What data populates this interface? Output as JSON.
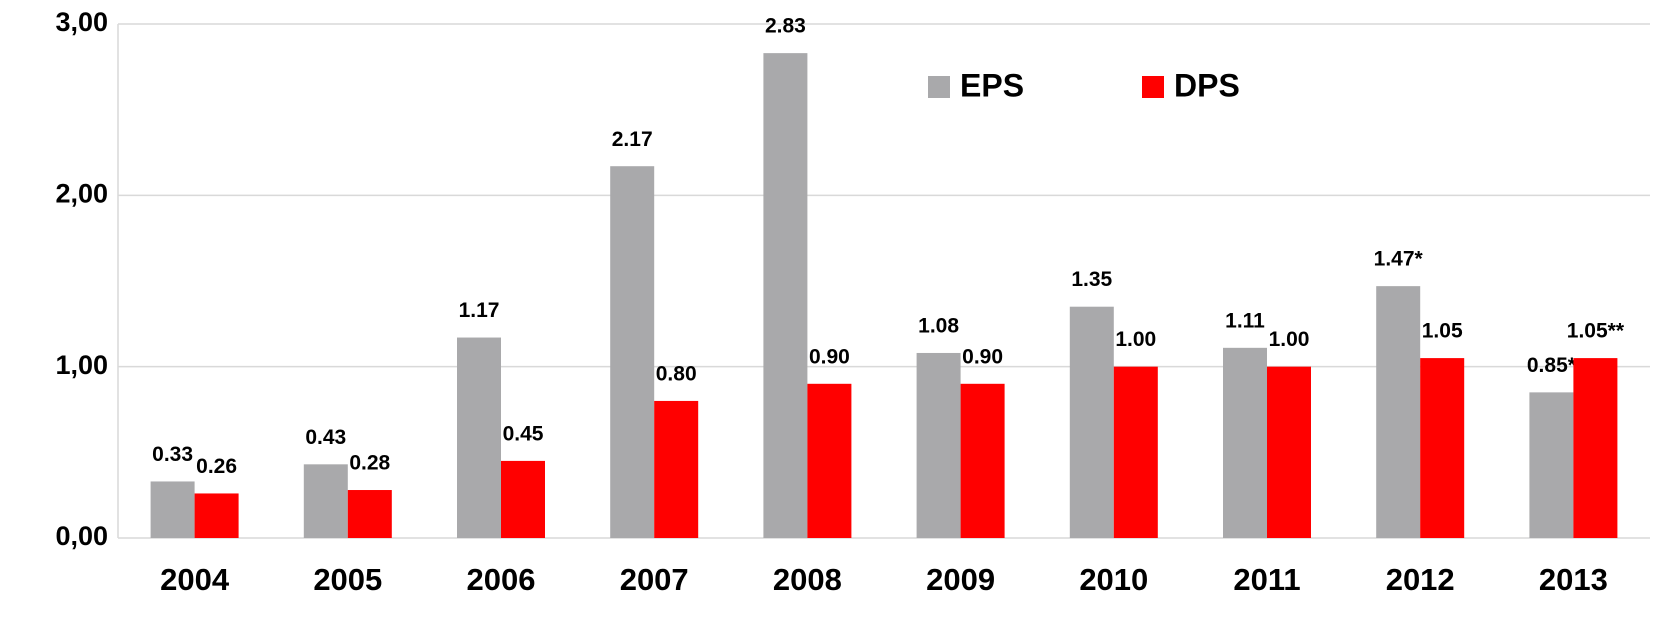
{
  "chart_data": {
    "type": "bar",
    "categories": [
      "2004",
      "2005",
      "2006",
      "2007",
      "2008",
      "2009",
      "2010",
      "2011",
      "2012",
      "2013"
    ],
    "series": [
      {
        "name": "EPS",
        "color": "#a9a9ab",
        "values": [
          0.33,
          0.43,
          1.17,
          2.17,
          2.83,
          1.08,
          1.35,
          1.11,
          1.47,
          0.85
        ],
        "value_labels": [
          "0.33",
          "0.43",
          "1.17",
          "2.17",
          "2.83",
          "1.08",
          "1.35",
          "1.11",
          "1.47*",
          "0.85*"
        ]
      },
      {
        "name": "DPS",
        "color": "#ff0000",
        "values": [
          0.26,
          0.28,
          0.45,
          0.8,
          0.9,
          0.9,
          1.0,
          1.0,
          1.05,
          1.05
        ],
        "value_labels": [
          "0.26",
          "0.28",
          "0.45",
          "0.80",
          "0.90",
          "0.90",
          "1.00",
          "1.00",
          "1.05",
          "1.05**"
        ]
      }
    ],
    "ylim": [
      0,
      3
    ],
    "yticks": [
      {
        "value": 0,
        "label": "0,00"
      },
      {
        "value": 1,
        "label": "1,00"
      },
      {
        "value": 2,
        "label": "2,00"
      },
      {
        "value": 3,
        "label": "3,00"
      }
    ],
    "grid": true,
    "legend": "top"
  }
}
